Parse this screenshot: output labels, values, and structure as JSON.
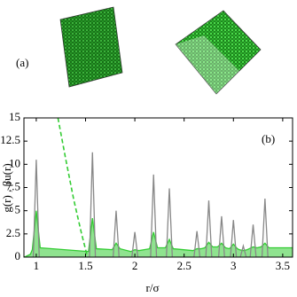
{
  "panel_a": {
    "label": "(a)"
  },
  "chart_data": {
    "type": "line",
    "annotation": "(b)",
    "xlabel": "r/σ",
    "ylabel": "g(r) , βu(r)",
    "xlim": [
      0.875,
      3.6
    ],
    "ylim": [
      0,
      15
    ],
    "xticks": [
      1,
      1.5,
      2,
      2.5,
      3,
      3.5
    ],
    "yticks": [
      0,
      2.5,
      5,
      7.5,
      10,
      12.5,
      15
    ],
    "series": [
      {
        "color": "#33cc33",
        "fill": true,
        "dash": false,
        "x": [
          0.88,
          0.94,
          0.96,
          1.0,
          1.04,
          1.53,
          1.57,
          1.61,
          1.77,
          1.81,
          1.85,
          1.96,
          2.0,
          2.04,
          2.15,
          2.19,
          2.23,
          2.31,
          2.35,
          2.39,
          2.59,
          2.63,
          2.67,
          2.71,
          2.75,
          2.79,
          2.84,
          2.88,
          2.92,
          2.96,
          3.0,
          3.04,
          3.06,
          3.1,
          3.14,
          3.16,
          3.2,
          3.24,
          3.28,
          3.32,
          3.36,
          3.6
        ],
        "values": [
          0,
          0.3,
          0.8,
          5,
          1.0,
          0.6,
          4.2,
          0.9,
          0.8,
          1.5,
          0.9,
          0.6,
          0.8,
          0.7,
          0.9,
          2.7,
          1.0,
          1.0,
          1.9,
          0.9,
          0.7,
          0.9,
          0.9,
          1.0,
          1.6,
          1.1,
          1.1,
          1.5,
          1.0,
          0.9,
          1.4,
          0.9,
          0.8,
          0.7,
          0.8,
          0.9,
          1.1,
          1.0,
          1.1,
          1.5,
          1.0,
          1.0
        ]
      },
      {
        "color": "#888888",
        "fill": false,
        "dash": false,
        "x": [
          0.97,
          1.0,
          1.03,
          1.54,
          1.57,
          1.6,
          1.78,
          1.81,
          1.84,
          1.97,
          2.0,
          2.03,
          2.16,
          2.19,
          2.22,
          2.32,
          2.35,
          2.38,
          2.6,
          2.63,
          2.66,
          2.72,
          2.75,
          2.78,
          2.85,
          2.88,
          2.91,
          2.97,
          3.0,
          3.03,
          3.07,
          3.1,
          3.13,
          3.17,
          3.2,
          3.23,
          3.29,
          3.32,
          3.35
        ],
        "values": [
          0,
          10.5,
          0,
          0,
          11.3,
          0,
          0,
          5,
          0,
          0,
          2.7,
          0,
          0,
          8.9,
          0,
          0,
          7.4,
          0,
          0,
          2.8,
          0,
          0,
          6.1,
          0,
          0,
          4.4,
          0,
          0,
          4.0,
          0,
          0,
          1.2,
          0,
          0,
          3.5,
          0,
          0,
          6.3,
          0
        ]
      },
      {
        "color": "#33cc33",
        "fill": false,
        "dash": true,
        "x": [
          1.22,
          1.3,
          1.38,
          1.46,
          1.52
        ],
        "values": [
          15,
          10.5,
          6.2,
          2.5,
          0
        ]
      }
    ]
  }
}
